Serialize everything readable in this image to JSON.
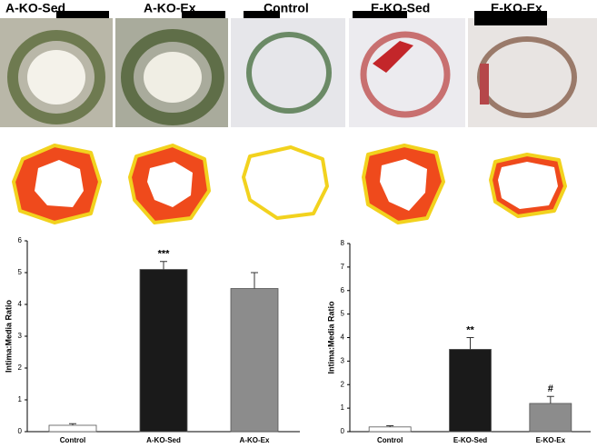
{
  "panels": [
    "A-KO-Sed",
    "A-KO-Ex",
    "Control",
    "E-KO-Sed",
    "E-KO-Ex"
  ],
  "chart_data": [
    {
      "type": "bar",
      "ylabel": "Intima:Media Ratio",
      "categories": [
        "Control",
        "A-KO-Sed",
        "A-KO-Ex"
      ],
      "values": [
        0.2,
        5.1,
        4.5
      ],
      "errors": [
        0.05,
        0.25,
        0.5
      ],
      "colors": [
        "#ffffff",
        "#1a1a1a",
        "#8c8c8c"
      ],
      "ylim": [
        0,
        6
      ],
      "yticks": [
        0,
        1,
        2,
        3,
        4,
        5,
        6
      ],
      "annotations": [
        {
          "category": "A-KO-Sed",
          "text": "***"
        }
      ]
    },
    {
      "type": "bar",
      "ylabel": "Intima:Media Ratio",
      "categories": [
        "Control",
        "E-KO-Sed",
        "E-KO-Ex"
      ],
      "values": [
        0.2,
        3.5,
        1.2
      ],
      "errors": [
        0.05,
        0.5,
        0.3
      ],
      "colors": [
        "#ffffff",
        "#1a1a1a",
        "#8c8c8c"
      ],
      "ylim": [
        0,
        8
      ],
      "yticks": [
        0,
        1,
        2,
        3,
        4,
        5,
        6,
        7,
        8
      ],
      "annotations": [
        {
          "category": "E-KO-Sed",
          "text": "**"
        },
        {
          "category": "E-KO-Ex",
          "text": "#"
        }
      ]
    }
  ]
}
